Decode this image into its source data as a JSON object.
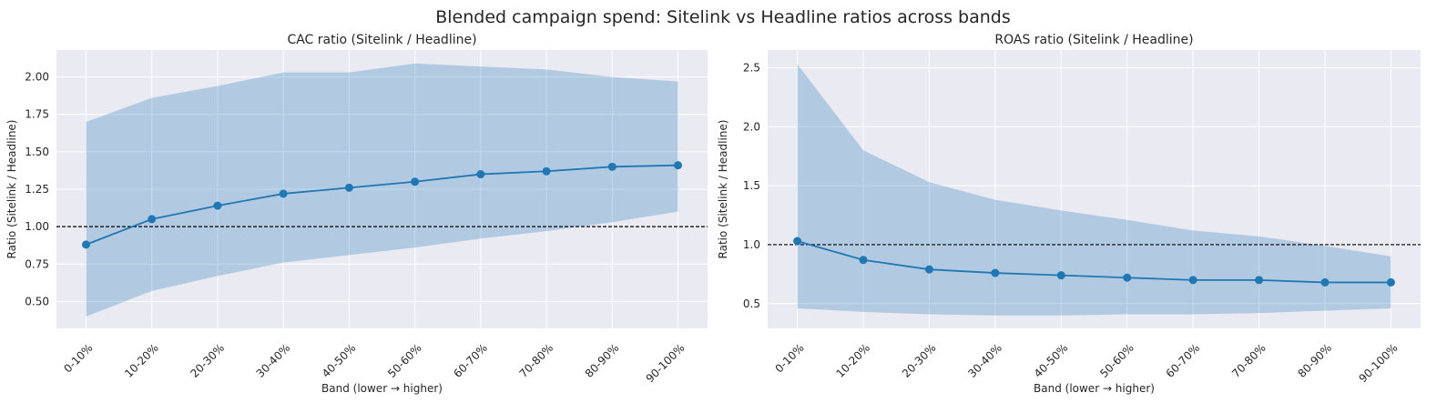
{
  "suptitle": "Blended campaign spend: Sitelink vs Headline ratios across bands",
  "chart_data": [
    {
      "type": "line",
      "title": "CAC ratio (Sitelink / Headline)",
      "xlabel": "Band (lower → higher)",
      "ylabel": "Ratio (Sitelink / Headline)",
      "categories": [
        "0-10%",
        "10-20%",
        "20-30%",
        "30-40%",
        "40-50%",
        "50-60%",
        "60-70%",
        "70-80%",
        "80-90%",
        "90-100%"
      ],
      "values": [
        0.88,
        1.05,
        1.14,
        1.22,
        1.26,
        1.3,
        1.35,
        1.37,
        1.4,
        1.41
      ],
      "band_upper": [
        1.7,
        1.86,
        1.94,
        2.03,
        2.03,
        2.09,
        2.07,
        2.05,
        2.0,
        1.97
      ],
      "band_lower": [
        0.4,
        0.57,
        0.67,
        0.76,
        0.81,
        0.86,
        0.92,
        0.97,
        1.03,
        1.1
      ],
      "reference_line": 1.0,
      "ylim": [
        0.32,
        2.18
      ],
      "yticks": [
        0.5,
        0.75,
        1.0,
        1.25,
        1.5,
        1.75,
        2.0
      ],
      "ytick_labels": [
        "0.50",
        "0.75",
        "1.00",
        "1.25",
        "1.50",
        "1.75",
        "2.00"
      ],
      "grid": true,
      "colors": {
        "line": "#1f77b4",
        "band": "#b7cde1",
        "background": "#eaeaf2"
      }
    },
    {
      "type": "line",
      "title": "ROAS ratio (Sitelink / Headline)",
      "xlabel": "Band (lower → higher)",
      "ylabel": "Ratio (Sitelink / Headline)",
      "categories": [
        "0-10%",
        "10-20%",
        "20-30%",
        "30-40%",
        "40-50%",
        "50-60%",
        "60-70%",
        "70-80%",
        "80-90%",
        "90-100%"
      ],
      "values": [
        1.03,
        0.87,
        0.79,
        0.76,
        0.74,
        0.72,
        0.7,
        0.7,
        0.68,
        0.68
      ],
      "band_upper": [
        2.53,
        1.8,
        1.53,
        1.38,
        1.29,
        1.21,
        1.12,
        1.07,
        0.99,
        0.9
      ],
      "band_lower": [
        0.46,
        0.43,
        0.41,
        0.4,
        0.4,
        0.41,
        0.41,
        0.42,
        0.44,
        0.46
      ],
      "reference_line": 1.0,
      "ylim": [
        0.29,
        2.65
      ],
      "yticks": [
        0.5,
        1.0,
        1.5,
        2.0,
        2.5
      ],
      "ytick_labels": [
        "0.5",
        "1.0",
        "1.5",
        "2.0",
        "2.5"
      ],
      "grid": true,
      "colors": {
        "line": "#1f77b4",
        "band": "#b7cde1",
        "background": "#eaeaf2"
      }
    }
  ]
}
